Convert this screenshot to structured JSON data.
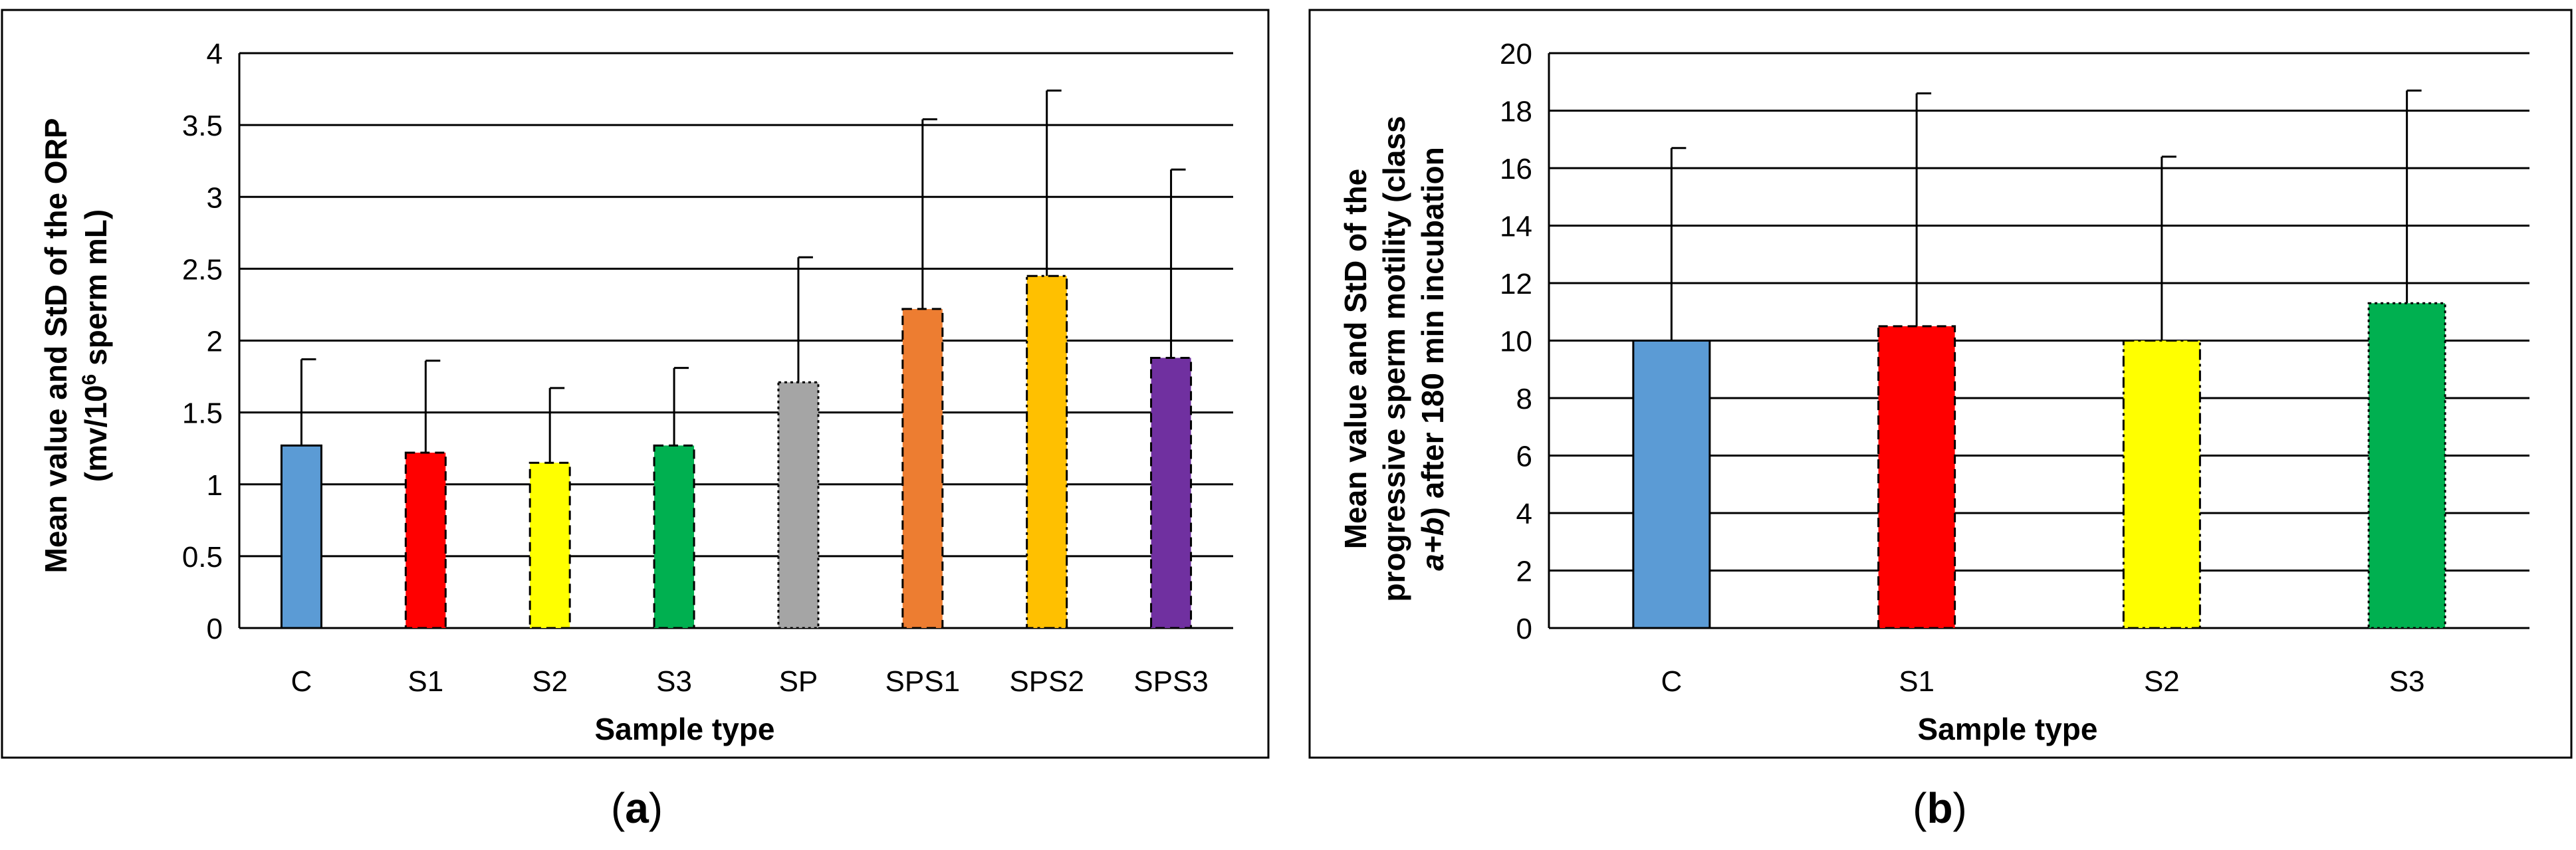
{
  "colors": {
    "C": "#5B9BD5",
    "S1": "#FF0000",
    "S2": "#FFFF00",
    "S3": "#00B050",
    "SP": "#A5A5A5",
    "SPS1": "#ED7D31",
    "SPS2": "#FFC000",
    "SPS3": "#7030A0"
  },
  "chart_data": [
    {
      "type": "bar",
      "panel_label": "a",
      "xlabel": "Sample type",
      "ylabel_line1": "Mean value and StD of the ORP",
      "ylabel_line2_pre": "(mv/10",
      "ylabel_line2_sup": "6",
      "ylabel_line2_post": " sperm mL)",
      "ylim": [
        0,
        4
      ],
      "yticks": [
        "0",
        "0.5",
        "1",
        "1.5",
        "2",
        "2.5",
        "3",
        "3.5",
        "4"
      ],
      "ytick_values": [
        0,
        0.5,
        1,
        1.5,
        2,
        2.5,
        3,
        3.5,
        4
      ],
      "categories": [
        "C",
        "S1",
        "S2",
        "S3",
        "SP",
        "SPS1",
        "SPS2",
        "SPS3"
      ],
      "values": [
        1.27,
        1.22,
        1.15,
        1.27,
        1.71,
        2.22,
        2.45,
        1.88
      ],
      "errors": [
        0.6,
        0.64,
        0.52,
        0.54,
        0.87,
        1.32,
        1.29,
        1.31
      ],
      "borders": [
        "solid",
        "dash",
        "dash",
        "dash",
        "dot",
        "dash",
        "dashdot",
        "dash"
      ],
      "grid": true
    },
    {
      "type": "bar",
      "panel_label": "b",
      "xlabel": "Sample type",
      "ylabel_line1": "Mean value and StD of the",
      "ylabel_line2": "progressive sperm motility (class",
      "ylabel_line3_italic": "a+b",
      "ylabel_line3_post": ") after 180 min incubation",
      "ylim": [
        0,
        20
      ],
      "yticks": [
        "0",
        "2",
        "4",
        "6",
        "8",
        "10",
        "12",
        "14",
        "16",
        "18",
        "20"
      ],
      "ytick_values": [
        0,
        2,
        4,
        6,
        8,
        10,
        12,
        14,
        16,
        18,
        20
      ],
      "categories": [
        "C",
        "S1",
        "S2",
        "S3"
      ],
      "values": [
        10.0,
        10.5,
        10.0,
        11.3
      ],
      "errors": [
        6.7,
        8.1,
        6.4,
        7.4
      ],
      "borders": [
        "solid",
        "dash",
        "dashdot",
        "dot"
      ],
      "grid": true
    }
  ]
}
